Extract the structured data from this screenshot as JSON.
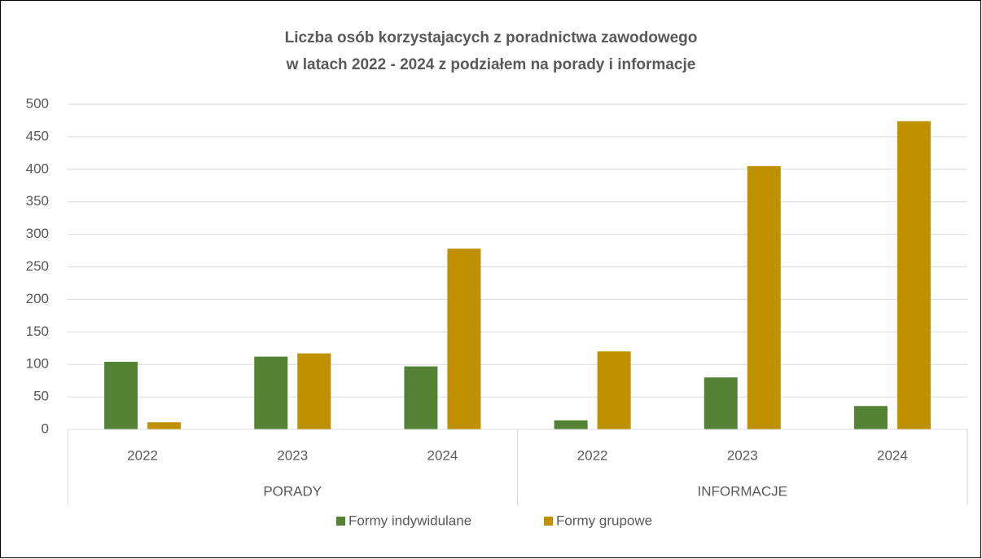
{
  "chart_data": {
    "type": "bar",
    "title": [
      "Liczba osób korzystajacych z poradnictwa zawodowego",
      "w latach 2022 - 2024 z podziałem na porady i informacje"
    ],
    "groups": [
      {
        "label": "PORADY",
        "categories": [
          "2022",
          "2023",
          "2024"
        ]
      },
      {
        "label": "INFORMACJE",
        "categories": [
          "2022",
          "2023",
          "2024"
        ]
      }
    ],
    "series": [
      {
        "name": "Formy indywidulane",
        "color": "#548235",
        "values": [
          104,
          112,
          97,
          14,
          80,
          36
        ]
      },
      {
        "name": "Formy grupowe",
        "color": "#bf9000",
        "values": [
          11,
          117,
          278,
          120,
          405,
          474
        ]
      }
    ],
    "ylim": [
      0,
      500
    ],
    "yticks": [
      0,
      50,
      100,
      150,
      200,
      250,
      300,
      350,
      400,
      450,
      500
    ],
    "grid": true,
    "legend": "bottom"
  }
}
